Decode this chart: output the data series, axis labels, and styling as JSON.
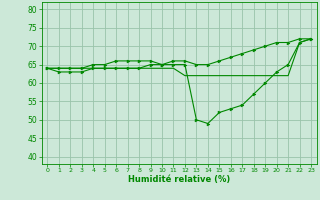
{
  "xlabel": "Humidité relative (%)",
  "bg_color": "#cce8d8",
  "grid_color": "#99c4aa",
  "line_color": "#008800",
  "xlim": [
    -0.5,
    23.5
  ],
  "ylim": [
    38,
    82
  ],
  "yticks": [
    40,
    45,
    50,
    55,
    60,
    65,
    70,
    75,
    80
  ],
  "xticks": [
    0,
    1,
    2,
    3,
    4,
    5,
    6,
    7,
    8,
    9,
    10,
    11,
    12,
    13,
    14,
    15,
    16,
    17,
    18,
    19,
    20,
    21,
    22,
    23
  ],
  "series1_x": [
    0,
    1,
    2,
    3,
    4,
    5,
    6,
    7,
    8,
    9,
    10,
    11,
    12,
    13,
    14,
    15,
    16,
    17,
    18,
    19,
    20,
    21,
    22,
    23
  ],
  "series1_y": [
    64,
    64,
    64,
    64,
    65,
    65,
    66,
    66,
    66,
    66,
    65,
    66,
    66,
    65,
    65,
    66,
    67,
    68,
    69,
    70,
    71,
    71,
    72,
    72
  ],
  "series2_x": [
    0,
    1,
    2,
    3,
    4,
    5,
    6,
    7,
    8,
    9,
    10,
    11,
    12,
    13,
    14,
    15,
    16,
    17,
    18,
    19,
    20,
    21,
    22,
    23
  ],
  "series2_y": [
    64,
    63,
    63,
    63,
    64,
    64,
    64,
    64,
    64,
    65,
    65,
    65,
    65,
    50,
    49,
    52,
    53,
    54,
    57,
    60,
    63,
    65,
    71,
    72
  ],
  "series3_x": [
    0,
    1,
    2,
    3,
    4,
    5,
    6,
    7,
    8,
    9,
    10,
    11,
    12,
    13,
    14,
    15,
    16,
    17,
    18,
    19,
    20,
    21,
    22,
    23
  ],
  "series3_y": [
    64,
    64,
    64,
    64,
    64,
    64,
    64,
    64,
    64,
    64,
    64,
    64,
    62,
    62,
    62,
    62,
    62,
    62,
    62,
    62,
    62,
    62,
    71,
    72
  ]
}
